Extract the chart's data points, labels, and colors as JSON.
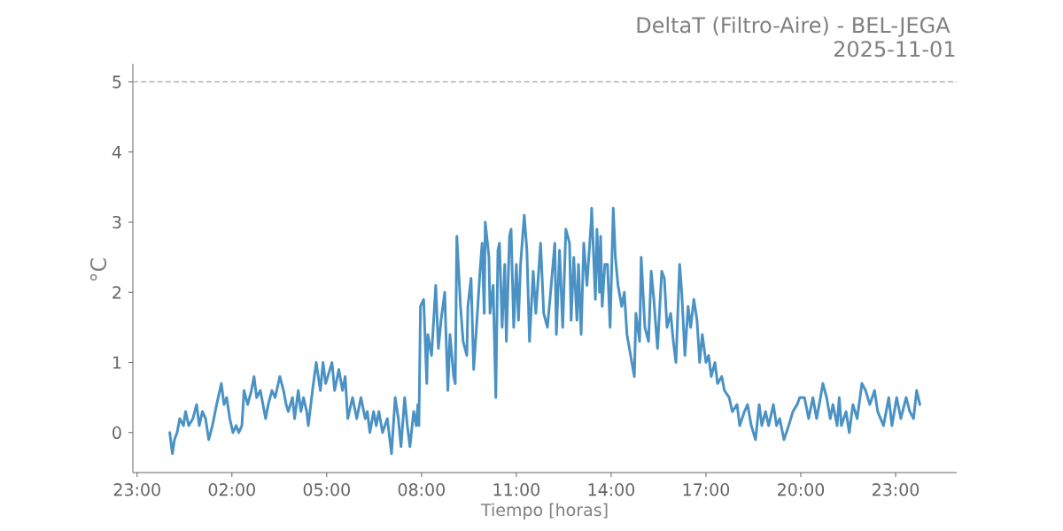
{
  "chart_data": {
    "type": "line",
    "title": "DeltaT (Filtro-Aire) - BEL-JEGA",
    "subtitle": "2025-11-01",
    "xlabel": "Tiempo [horas]",
    "ylabel": "°C",
    "x": [
      "2025-11-01T00:02",
      "2025-11-01T00:07",
      "2025-11-01T00:11",
      "2025-11-01T00:16",
      "2025-11-01T00:21",
      "2025-11-01T00:28",
      "2025-11-01T00:32",
      "2025-11-01T00:38",
      "2025-11-01T00:46",
      "2025-11-01T00:53",
      "2025-11-01T00:58",
      "2025-11-01T01:04",
      "2025-11-01T01:10",
      "2025-11-01T01:16",
      "2025-11-01T01:23",
      "2025-11-01T01:31",
      "2025-11-01T01:40",
      "2025-11-01T01:45",
      "2025-11-01T01:50",
      "2025-11-01T01:56",
      "2025-11-01T02:02",
      "2025-11-01T02:08",
      "2025-11-01T02:13",
      "2025-11-01T02:19",
      "2025-11-01T02:23",
      "2025-11-01T02:30",
      "2025-11-01T02:37",
      "2025-11-01T02:42",
      "2025-11-01T02:47",
      "2025-11-01T02:54",
      "2025-11-01T02:59",
      "2025-11-01T03:04",
      "2025-11-01T03:09",
      "2025-11-01T03:16",
      "2025-11-01T03:22",
      "2025-11-01T03:31",
      "2025-11-01T03:38",
      "2025-11-01T03:43",
      "2025-11-01T03:47",
      "2025-11-01T03:55",
      "2025-11-01T03:59",
      "2025-11-01T04:06",
      "2025-11-01T04:11",
      "2025-11-01T04:16",
      "2025-11-01T04:22",
      "2025-11-01T04:25",
      "2025-11-01T04:33",
      "2025-11-01T04:40",
      "2025-11-01T04:48",
      "2025-11-01T04:53",
      "2025-11-01T04:58",
      "2025-11-01T05:10",
      "2025-11-01T05:15",
      "2025-11-01T05:23",
      "2025-11-01T05:30",
      "2025-11-01T05:35",
      "2025-11-01T05:40",
      "2025-11-01T05:49",
      "2025-11-01T05:57",
      "2025-11-01T06:05",
      "2025-11-01T06:13",
      "2025-11-01T06:17",
      "2025-11-01T06:22",
      "2025-11-01T06:29",
      "2025-11-01T06:34",
      "2025-11-01T06:39",
      "2025-11-01T06:46",
      "2025-11-01T06:55",
      "2025-11-01T07:03",
      "2025-11-01T07:10",
      "2025-11-01T07:16",
      "2025-11-01T07:21",
      "2025-11-01T07:28",
      "2025-11-01T07:33",
      "2025-11-01T07:38",
      "2025-11-01T07:45",
      "2025-11-01T07:50",
      "2025-11-01T07:53",
      "2025-11-01T07:55",
      "2025-11-01T07:58",
      "2025-11-01T08:04",
      "2025-11-01T08:10",
      "2025-11-01T08:12",
      "2025-11-01T08:19",
      "2025-11-01T08:27",
      "2025-11-01T08:32",
      "2025-11-01T08:37",
      "2025-11-01T08:44",
      "2025-11-01T08:46",
      "2025-11-01T08:50",
      "2025-11-01T08:54",
      "2025-11-01T09:01",
      "2025-11-01T09:04",
      "2025-11-01T09:07",
      "2025-11-01T09:14",
      "2025-11-01T09:19",
      "2025-11-01T09:26",
      "2025-11-01T09:28",
      "2025-11-01T09:34",
      "2025-11-01T09:39",
      "2025-11-01T09:46",
      "2025-11-01T09:51",
      "2025-11-01T09:55",
      "2025-11-01T09:59",
      "2025-11-01T10:01",
      "2025-11-01T10:08",
      "2025-11-01T10:10",
      "2025-11-01T10:16",
      "2025-11-01T10:21",
      "2025-11-01T10:25",
      "2025-11-01T10:28",
      "2025-11-01T10:33",
      "2025-11-01T10:38",
      "2025-11-01T10:41",
      "2025-11-01T10:47",
      "2025-11-01T10:50",
      "2025-11-01T10:55",
      "2025-11-01T11:00",
      "2025-11-01T11:04",
      "2025-11-01T11:08",
      "2025-11-01T11:15",
      "2025-11-01T11:20",
      "2025-11-01T11:25",
      "2025-11-01T11:32",
      "2025-11-01T11:37",
      "2025-11-01T11:46",
      "2025-11-01T11:52",
      "2025-11-01T11:59",
      "2025-11-01T12:05",
      "2025-11-01T12:13",
      "2025-11-01T12:16",
      "2025-11-01T12:22",
      "2025-11-01T12:28",
      "2025-11-01T12:34",
      "2025-11-01T12:41",
      "2025-11-01T12:44",
      "2025-11-01T12:49",
      "2025-11-01T12:55",
      "2025-11-01T12:58",
      "2025-11-01T13:03",
      "2025-11-01T13:08",
      "2025-11-01T13:14",
      "2025-11-01T13:22",
      "2025-11-01T13:23",
      "2025-11-01T13:30",
      "2025-11-01T13:33",
      "2025-11-01T13:38",
      "2025-11-01T13:40",
      "2025-11-01T13:43",
      "2025-11-01T13:48",
      "2025-11-01T13:53",
      "2025-11-01T13:58",
      "2025-11-01T14:04",
      "2025-11-01T14:08",
      "2025-11-01T14:13",
      "2025-11-01T14:20",
      "2025-11-01T14:25",
      "2025-11-01T14:30",
      "2025-11-01T14:37",
      "2025-11-01T14:44",
      "2025-11-01T14:47",
      "2025-11-01T14:54",
      "2025-11-01T14:57",
      "2025-11-01T15:04",
      "2025-11-01T15:11",
      "2025-11-01T15:16",
      "2025-11-01T15:21",
      "2025-11-01T15:28",
      "2025-11-01T15:36",
      "2025-11-01T15:41",
      "2025-11-01T15:46",
      "2025-11-01T15:53",
      "2025-11-01T15:58",
      "2025-11-01T16:03",
      "2025-11-01T16:10",
      "2025-11-01T16:14",
      "2025-11-01T16:20",
      "2025-11-01T16:26",
      "2025-11-01T16:31",
      "2025-11-01T16:37",
      "2025-11-01T16:43",
      "2025-11-01T16:48",
      "2025-11-01T16:53",
      "2025-11-01T17:00",
      "2025-11-01T17:05",
      "2025-11-01T17:10",
      "2025-11-01T17:17",
      "2025-11-01T17:22",
      "2025-11-01T17:30",
      "2025-11-01T17:35",
      "2025-11-01T17:44",
      "2025-11-01T17:50",
      "2025-11-01T17:59",
      "2025-11-01T18:04",
      "2025-11-01T18:13",
      "2025-11-01T18:19",
      "2025-11-01T18:26",
      "2025-11-01T18:34",
      "2025-11-01T18:41",
      "2025-11-01T18:46",
      "2025-11-01T18:53",
      "2025-11-01T18:59",
      "2025-11-01T19:08",
      "2025-11-01T19:14",
      "2025-11-01T19:20",
      "2025-11-01T19:28",
      "2025-11-01T19:37",
      "2025-11-01T19:45",
      "2025-11-01T19:53",
      "2025-11-01T19:58",
      "2025-11-01T20:07",
      "2025-11-01T20:15",
      "2025-11-01T20:23",
      "2025-11-01T20:30",
      "2025-11-01T20:35",
      "2025-11-01T20:42",
      "2025-11-01T20:49",
      "2025-11-01T20:56",
      "2025-11-01T21:01",
      "2025-11-01T21:09",
      "2025-11-01T21:13",
      "2025-11-01T21:17",
      "2025-11-01T21:26",
      "2025-11-01T21:32",
      "2025-11-01T21:39",
      "2025-11-01T21:47",
      "2025-11-01T21:56",
      "2025-11-01T22:03",
      "2025-11-01T22:11",
      "2025-11-01T22:20",
      "2025-11-01T22:26",
      "2025-11-01T22:37",
      "2025-11-01T22:47",
      "2025-11-01T22:53",
      "2025-11-01T23:02",
      "2025-11-01T23:10",
      "2025-11-01T23:20",
      "2025-11-01T23:27",
      "2025-11-01T23:34",
      "2025-11-01T23:40",
      "2025-11-01T23:46"
    ],
    "series": [
      {
        "color": "#4a92c4",
        "values": [
          0.0,
          -0.3,
          -0.1,
          0.0,
          0.2,
          0.1,
          0.3,
          0.1,
          0.2,
          0.4,
          0.1,
          0.3,
          0.2,
          -0.1,
          0.1,
          0.4,
          0.7,
          0.4,
          0.5,
          0.2,
          0.0,
          0.1,
          0.0,
          0.1,
          0.6,
          0.4,
          0.6,
          0.8,
          0.5,
          0.6,
          0.4,
          0.2,
          0.4,
          0.6,
          0.5,
          0.8,
          0.6,
          0.4,
          0.3,
          0.5,
          0.2,
          0.6,
          0.3,
          0.5,
          0.3,
          0.1,
          0.6,
          1.0,
          0.6,
          1.0,
          0.7,
          1.0,
          0.6,
          0.9,
          0.6,
          0.8,
          0.2,
          0.5,
          0.2,
          0.5,
          0.2,
          0.3,
          0.0,
          0.3,
          0.1,
          0.3,
          0.0,
          0.2,
          -0.3,
          0.5,
          0.2,
          -0.2,
          0.5,
          0.1,
          -0.2,
          0.3,
          0.1,
          0.4,
          0.1,
          1.8,
          1.9,
          0.7,
          1.4,
          1.1,
          2.1,
          1.2,
          1.6,
          2.0,
          1.5,
          0.6,
          1.4,
          0.8,
          0.7,
          2.8,
          1.8,
          1.3,
          1.1,
          1.8,
          2.2,
          0.9,
          1.7,
          2.3,
          2.7,
          1.7,
          3.0,
          2.5,
          1.7,
          2.1,
          0.5,
          2.6,
          2.7,
          1.5,
          2.4,
          1.3,
          2.8,
          2.9,
          1.5,
          2.4,
          1.6,
          2.4,
          3.1,
          2.6,
          1.3,
          2.3,
          1.7,
          2.7,
          1.7,
          1.5,
          2.0,
          2.7,
          1.4,
          2.6,
          1.5,
          2.9,
          2.7,
          1.6,
          2.5,
          1.6,
          2.4,
          1.4,
          2.7,
          2.1,
          3.0,
          3.2,
          1.9,
          2.9,
          2.0,
          2.8,
          1.8,
          2.4,
          2.4,
          1.5,
          3.2,
          2.5,
          2.1,
          1.8,
          2.0,
          1.4,
          1.1,
          0.8,
          1.7,
          1.3,
          2.5,
          1.5,
          1.3,
          2.3,
          1.9,
          1.2,
          2.3,
          2.2,
          1.5,
          1.7,
          1.3,
          1.0,
          2.4,
          2.0,
          1.1,
          1.8,
          1.5,
          1.9,
          1.6,
          1.0,
          1.4,
          1.0,
          1.1,
          0.8,
          1.0,
          0.7,
          0.8,
          0.6,
          0.5,
          0.3,
          0.4,
          0.1,
          0.3,
          0.4,
          0.1,
          -0.1,
          0.4,
          0.1,
          0.3,
          0.1,
          0.4,
          0.1,
          0.2,
          -0.1,
          0.1,
          0.3,
          0.4,
          0.5,
          0.5,
          0.2,
          0.5,
          0.2,
          0.4,
          0.7,
          0.5,
          0.2,
          0.4,
          0.1,
          0.5,
          0.1,
          0.3,
          0.0,
          0.4,
          0.2,
          0.7,
          0.6,
          0.4,
          0.6,
          0.3,
          0.1,
          0.5,
          0.1,
          0.5,
          0.2,
          0.5,
          0.3,
          0.2,
          0.6,
          0.4
        ]
      }
    ],
    "xlim": [
      "2025-10-31T22:52",
      "2025-11-02T00:56"
    ],
    "ylim": [
      -0.57,
      5.26
    ],
    "xticks": [
      {
        "value": "2025-10-31T23:00",
        "label": "23:00"
      },
      {
        "value": "2025-11-01T02:00",
        "label": "02:00"
      },
      {
        "value": "2025-11-01T05:00",
        "label": "05:00"
      },
      {
        "value": "2025-11-01T08:00",
        "label": "08:00"
      },
      {
        "value": "2025-11-01T11:00",
        "label": "11:00"
      },
      {
        "value": "2025-11-01T14:00",
        "label": "14:00"
      },
      {
        "value": "2025-11-01T17:00",
        "label": "17:00"
      },
      {
        "value": "2025-11-01T20:00",
        "label": "20:00"
      },
      {
        "value": "2025-11-01T23:00",
        "label": "23:00"
      }
    ],
    "yticks": [
      0,
      1,
      2,
      3,
      4,
      5
    ],
    "ref_lines": [
      {
        "axis": "y",
        "value": 5,
        "color": "#b0b0b0",
        "line_style": "dashed"
      }
    ],
    "marker": "none",
    "line_style": "solid"
  }
}
